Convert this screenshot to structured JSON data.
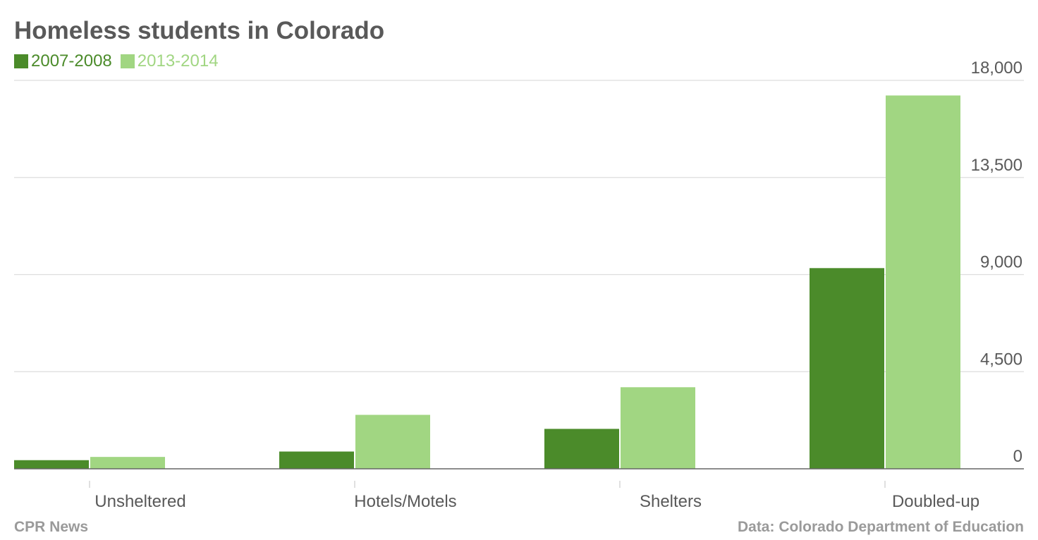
{
  "header": {
    "title": "Homeless students in Colorado"
  },
  "legend": [
    {
      "label": "2007-2008",
      "color": "#4b8b2a"
    },
    {
      "label": "2013-2014",
      "color": "#a1d682"
    }
  ],
  "footer": {
    "source_left": "CPR News",
    "source_right": "Data: Colorado Department of Education"
  },
  "chart_data": {
    "type": "bar",
    "title": "Homeless students in Colorado",
    "xlabel": "",
    "ylabel": "",
    "categories": [
      "Unsheltered",
      "Hotels/Motels",
      "Shelters",
      "Doubled-up"
    ],
    "series": [
      {
        "name": "2007-2008",
        "values": [
          400,
          800,
          1850,
          9300
        ],
        "color": "#4b8b2a"
      },
      {
        "name": "2013-2014",
        "values": [
          550,
          2500,
          3780,
          17300
        ],
        "color": "#a1d682"
      }
    ],
    "ylim": [
      0,
      18000
    ],
    "yticks": [
      0,
      4500,
      9000,
      13500,
      18000
    ],
    "ytick_labels": [
      "0",
      "4,500",
      "9,000",
      "13,500",
      "18,000"
    ],
    "y_axis_position": "right",
    "grid": true,
    "legend_position": "top-left"
  }
}
